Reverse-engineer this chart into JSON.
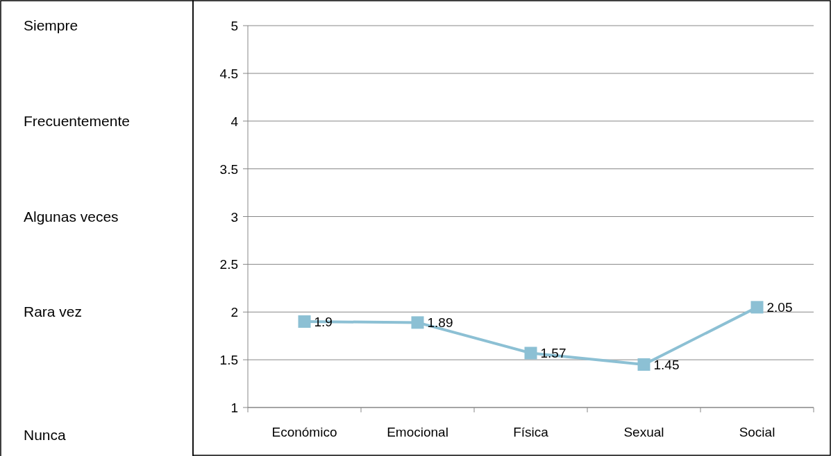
{
  "chart_data": {
    "type": "line",
    "categories": [
      "Económico",
      "Emocional",
      "Física",
      "Sexual",
      "Social"
    ],
    "series": [
      {
        "color": "#8cc0d4",
        "values": [
          1.9,
          1.89,
          1.57,
          1.45,
          2.05
        ]
      }
    ],
    "ylim": [
      1,
      5
    ],
    "yticks": [
      1,
      1.5,
      2,
      2.5,
      3,
      3.5,
      4,
      4.5,
      5
    ],
    "annotations": [
      "Siempre",
      "Frecuentemente",
      "Algunas veces",
      "Rara vez",
      "Nunca"
    ],
    "grid": "y",
    "marker": "square",
    "line_style": "solid",
    "data_labels": true
  }
}
